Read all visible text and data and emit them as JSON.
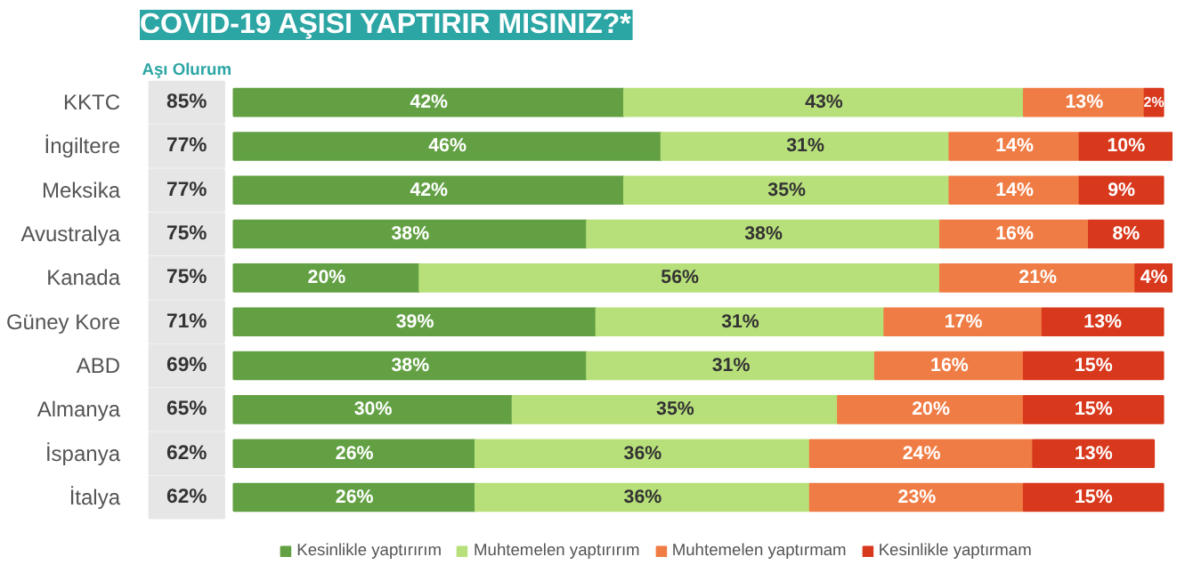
{
  "chart_data": {
    "type": "bar",
    "orientation": "horizontal",
    "stacked": true,
    "title": "COVID-19 AŞISI YAPTIRIR MISINIZ?*",
    "categories": [
      "KKTC",
      "İngiltere",
      "Meksika",
      "Avustralya",
      "Kanada",
      "Güney Kore",
      "ABD",
      "Almanya",
      "İspanya",
      "İtalya"
    ],
    "series": [
      {
        "name": "Kesinlikle yaptırırım",
        "color": "#62a043",
        "values": [
          42,
          46,
          42,
          38,
          20,
          39,
          38,
          30,
          26,
          26
        ],
        "value_labels": [
          "42%",
          "46%",
          "42%",
          "38%",
          "20%",
          "39%",
          "38%",
          "30%",
          "26%",
          "26%"
        ]
      },
      {
        "name": "Muhtemelen yaptırırım",
        "color": "#b8e07a",
        "values": [
          43,
          31,
          35,
          38,
          56,
          31,
          31,
          35,
          36,
          36
        ],
        "value_labels": [
          "43%",
          "31%",
          "35%",
          "38%",
          "56%",
          "31%",
          "31%",
          "35%",
          "36%",
          "36%"
        ]
      },
      {
        "name": "Muhtemelen yaptırmam",
        "color": "#f07c45",
        "values": [
          13,
          14,
          14,
          16,
          21,
          17,
          16,
          20,
          24,
          23
        ],
        "value_labels": [
          "13%",
          "14%",
          "14%",
          "16%",
          "21%",
          "17%",
          "16%",
          "20%",
          "24%",
          "23%"
        ]
      },
      {
        "name": "Kesinlikle yaptırmam",
        "color": "#d8381c",
        "values": [
          2,
          10,
          9,
          8,
          4,
          13,
          15,
          15,
          13,
          15
        ],
        "value_labels": [
          "2%",
          "10%",
          "9%",
          "8%",
          "4%",
          "13%",
          "15%",
          "15%",
          "13%",
          "15%"
        ]
      }
    ],
    "legend": "bottom",
    "annotations": [
      "Aşı Olurum",
      "85%",
      "77%",
      "77%",
      "75%",
      "75%",
      "71%",
      "69%",
      "65%",
      "62%",
      "62%"
    ]
  }
}
